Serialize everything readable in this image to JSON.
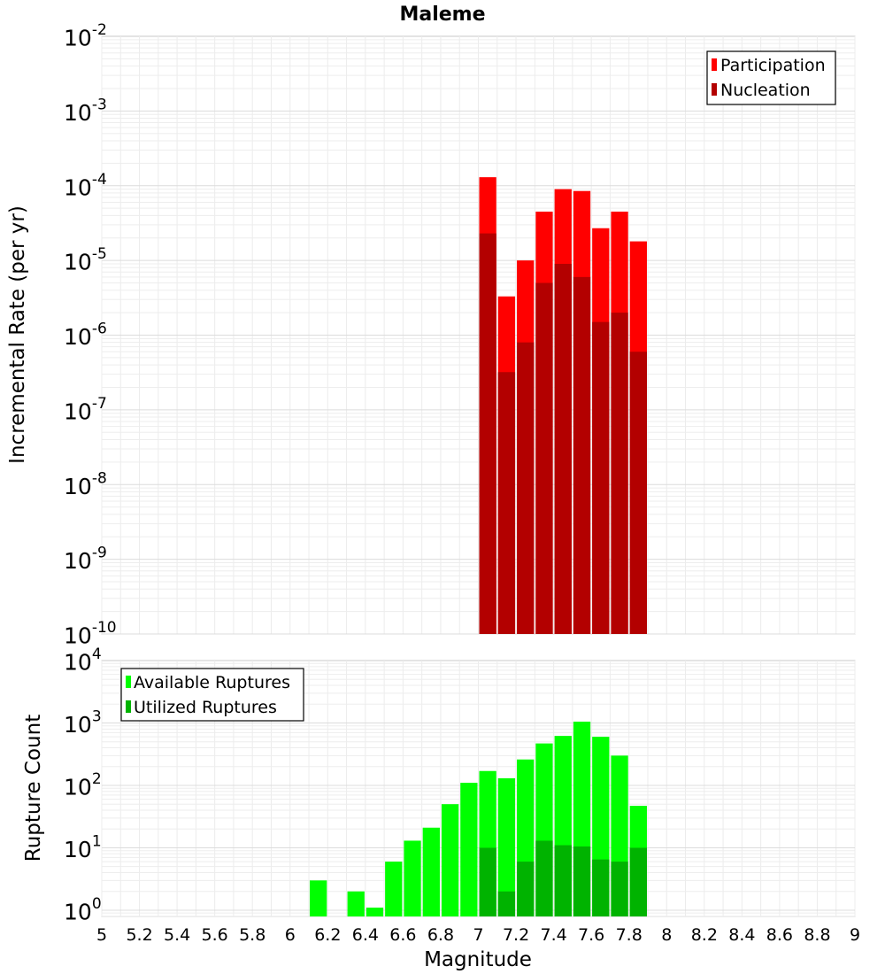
{
  "chart_data": [
    {
      "type": "bar",
      "scale": "log",
      "title": "Maleme",
      "xlabel": "",
      "ylabel": "Incremental Rate (per yr)",
      "xlim": [
        5,
        9
      ],
      "ylim_exponents": [
        -10,
        -2
      ],
      "y_tick_exponents": [
        "-2",
        "-3",
        "-4",
        "-5",
        "-6",
        "-7",
        "-8",
        "-9",
        "-10"
      ],
      "x": [
        7.05,
        7.15,
        7.25,
        7.35,
        7.45,
        7.55,
        7.65,
        7.75,
        7.85
      ],
      "series": [
        {
          "name": "Participation",
          "color": "#ff0000",
          "values": [
            0.00013,
            3.3e-06,
            1e-05,
            4.5e-05,
            9e-05,
            8.5e-05,
            2.7e-05,
            4.5e-05,
            1.8e-05
          ]
        },
        {
          "name": "Nucleation",
          "color": "#b30000",
          "values": [
            2.3e-05,
            3.2e-07,
            8e-07,
            5e-06,
            9e-06,
            6e-06,
            1.5e-06,
            2e-06,
            6e-07
          ]
        }
      ],
      "legend": "top-right"
    },
    {
      "type": "bar",
      "scale": "log",
      "title": "",
      "xlabel": "Magnitude",
      "ylabel": "Rupture Count",
      "xlim": [
        5,
        9
      ],
      "ylim_exponents": [
        -0.1,
        4
      ],
      "y_tick_exponents": [
        "4",
        "3",
        "2",
        "1",
        "0"
      ],
      "x_ticks": [
        "5",
        "5.2",
        "5.4",
        "5.6",
        "5.8",
        "6",
        "6.2",
        "6.4",
        "6.6",
        "6.8",
        "7",
        "7.2",
        "7.4",
        "7.6",
        "7.8",
        "8",
        "8.2",
        "8.4",
        "8.6",
        "8.8",
        "9"
      ],
      "x": [
        6.15,
        6.35,
        6.45,
        6.55,
        6.65,
        6.75,
        6.85,
        6.95,
        7.05,
        7.15,
        7.25,
        7.35,
        7.45,
        7.55,
        7.65,
        7.75,
        7.85
      ],
      "series": [
        {
          "name": "Available Ruptures",
          "color": "#00ff00",
          "values": [
            3,
            2,
            1.1,
            6,
            13,
            21,
            50,
            110,
            170,
            130,
            260,
            470,
            620,
            1050,
            600,
            300,
            47
          ]
        },
        {
          "name": "Utilized Ruptures",
          "color": "#00b300",
          "values": [
            0,
            0,
            0,
            0,
            0,
            0,
            0,
            0,
            10,
            2,
            6,
            13,
            11,
            10.5,
            6.5,
            6,
            10
          ]
        }
      ],
      "legend": "top-left"
    }
  ]
}
